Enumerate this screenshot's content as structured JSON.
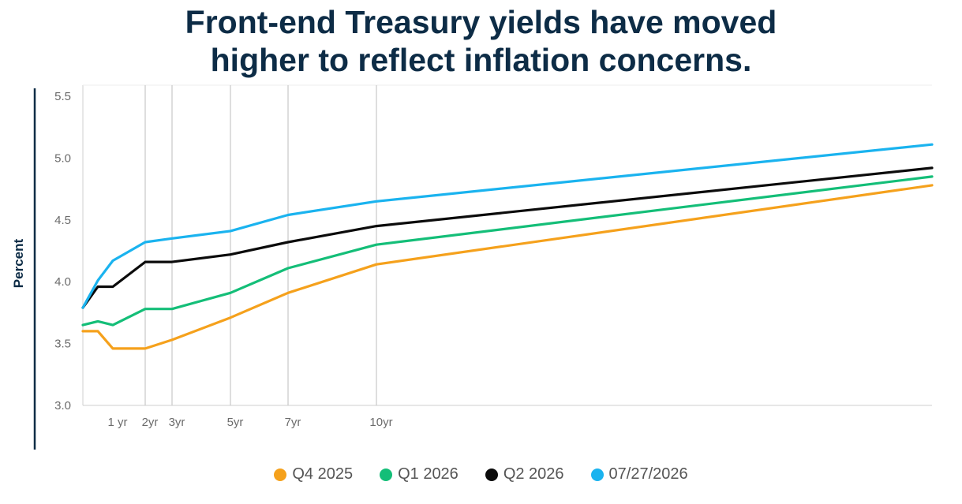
{
  "title_lines": [
    "Front-end Treasury yields have moved",
    "higher to reflect inflation concerns."
  ],
  "chart_data": {
    "type": "line",
    "ylabel": "Percent",
    "xlabel": "",
    "ylim": [
      3.0,
      5.5
    ],
    "xlim": [
      0,
      30
    ],
    "y_ticks": [
      3.0,
      3.5,
      4.0,
      4.5,
      5.0,
      5.5
    ],
    "x_ticks": [
      {
        "label": "1 yr",
        "value": 1
      },
      {
        "label": "2yr",
        "value": 2
      },
      {
        "label": "3yr",
        "value": 3
      },
      {
        "label": "5yr",
        "value": 5
      },
      {
        "label": "7yr",
        "value": 7
      },
      {
        "label": "10yr",
        "value": 10
      }
    ],
    "vertical_gridlines_at": [
      2,
      3,
      5,
      7,
      10
    ],
    "x": [
      0,
      0.5,
      1,
      2,
      3,
      5,
      7,
      10,
      30
    ],
    "series": [
      {
        "name": "Q4 2025",
        "color": "#f5a11c",
        "values": [
          3.6,
          3.6,
          3.46,
          3.46,
          3.53,
          3.71,
          3.91,
          4.14,
          4.78
        ]
      },
      {
        "name": "Q1 2026",
        "color": "#14be78",
        "values": [
          3.65,
          3.68,
          3.65,
          3.78,
          3.78,
          3.91,
          4.11,
          4.3,
          4.85
        ]
      },
      {
        "name": "Q2 2026",
        "color": "#0b0b0b",
        "values": [
          3.79,
          3.96,
          3.96,
          4.16,
          4.16,
          4.22,
          4.32,
          4.45,
          4.92
        ]
      },
      {
        "name": "07/27/2026",
        "color": "#1ab3ef",
        "values": [
          3.79,
          4.01,
          4.17,
          4.32,
          4.35,
          4.41,
          4.54,
          4.65,
          5.11
        ]
      }
    ],
    "grid": "vertical-only",
    "legend": "bottom-center"
  }
}
